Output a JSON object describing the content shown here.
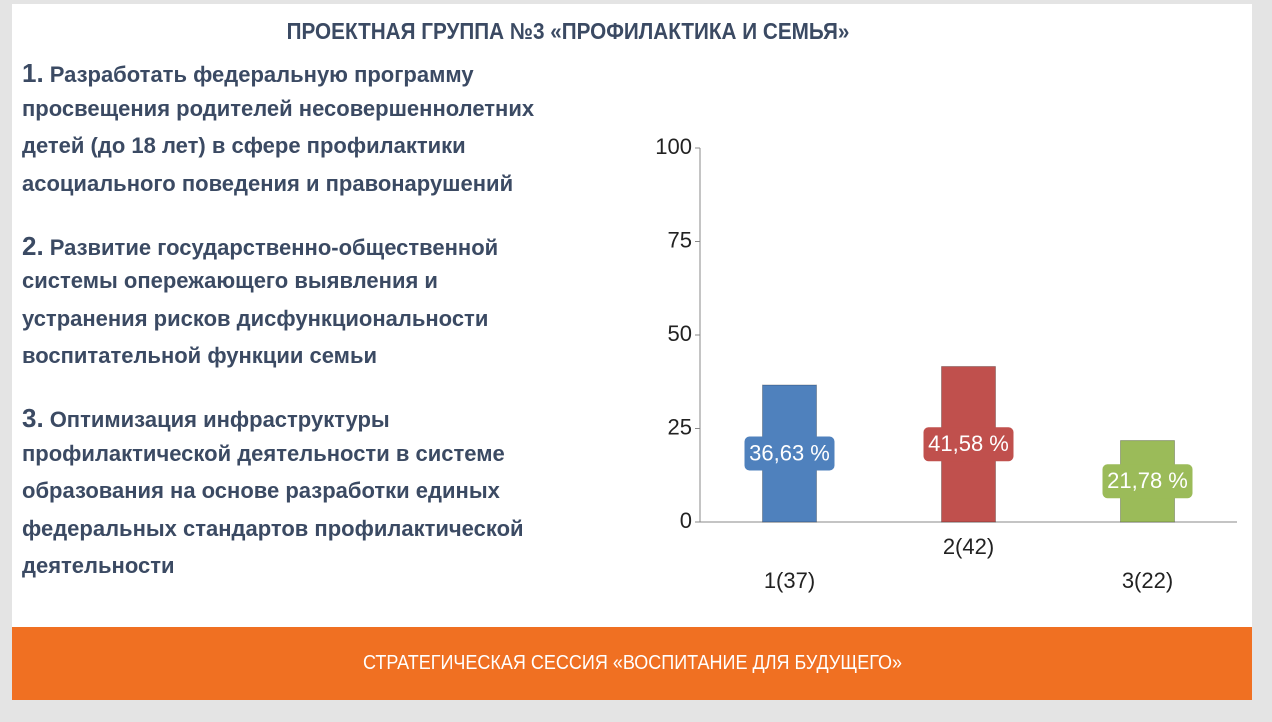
{
  "slide_title": "ПРОЕКТНАЯ ГРУППА №3 «ПРОФИЛАКТИКА И СЕМЬЯ»",
  "items": [
    {
      "number": "1.",
      "lines": [
        "Разработать федеральную программу",
        "просвещения родителей несовершеннолетних",
        "детей (до 18 лет) в сфере профилактики",
        "асоциального поведения и правонарушений"
      ]
    },
    {
      "number": "2.",
      "lines": [
        "Развитие  государственно-общественной",
        "системы опережающего выявления и",
        "устранения   рисков дисфункциональности",
        "воспитательной функции  семьи"
      ]
    },
    {
      "number": "3.",
      "lines": [
        "Оптимизация  инфраструктуры",
        "профилактической деятельности в системе",
        "образования на основе разработки единых",
        "федеральных стандартов профилактической",
        "деятельности"
      ]
    }
  ],
  "chart_data": {
    "type": "bar",
    "categories": [
      "1(37)",
      "2(42)",
      "3(22)"
    ],
    "values": [
      36.63,
      41.58,
      21.78
    ],
    "value_labels": [
      "36,63 %",
      "41,58 %",
      "21,78 %"
    ],
    "colors": [
      "#4f81bd",
      "#c0504d",
      "#9bbb59"
    ],
    "ylim": [
      0,
      100
    ],
    "yticks": [
      0,
      25,
      50,
      75,
      100
    ]
  },
  "footer": "СТРАТЕГИЧЕСКАЯ СЕССИЯ «ВОСПИТАНИЕ ДЛЯ БУДУЩЕГО»"
}
